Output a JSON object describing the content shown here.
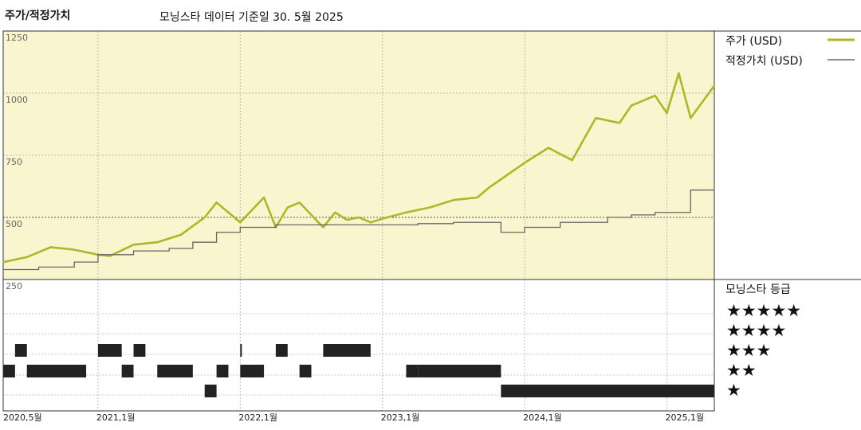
{
  "header": {
    "title": "주가/적정가치",
    "subtitle": "모닝스타 데이터 기준일 30. 5월 2025"
  },
  "legend": {
    "price_label": "주가 (USD)",
    "fair_value_label": "적정가치 (USD)",
    "rating_title": "모닝스타 등급",
    "rating_levels": [
      "★★★★★",
      "★★★★",
      "★★★",
      "★★",
      "★"
    ]
  },
  "colors": {
    "plot_background": "#f8f5cf",
    "price_line": "#aeb728",
    "fair_value_line": "#666666",
    "grid": "#bbbbbb",
    "rating_bar": "#222222"
  },
  "chart_data": {
    "type": "line",
    "y_ticks": [
      250,
      500,
      750,
      1000,
      1250
    ],
    "x_tick_labels": [
      "2020,5월",
      "2021,1월",
      "2022,1월",
      "2023,1월",
      "2024,1월",
      "2025,1월"
    ],
    "ylim": [
      250,
      1250
    ],
    "xlim": [
      "2020-05",
      "2025-05"
    ],
    "series": [
      {
        "name": "주가 (USD)",
        "x": [
          "2020-05",
          "2020-07",
          "2020-09",
          "2020-11",
          "2021-01",
          "2021-02",
          "2021-04",
          "2021-06",
          "2021-08",
          "2021-10",
          "2021-11",
          "2022-01",
          "2022-03",
          "2022-04",
          "2022-05",
          "2022-06",
          "2022-08",
          "2022-09",
          "2022-10",
          "2022-11",
          "2022-12",
          "2023-01",
          "2023-03",
          "2023-05",
          "2023-07",
          "2023-09",
          "2023-10",
          "2024-01",
          "2024-03",
          "2024-05",
          "2024-07",
          "2024-09",
          "2024-10",
          "2024-12",
          "2025-01",
          "2025-02",
          "2025-03",
          "2025-05"
        ],
        "values": [
          320,
          340,
          380,
          370,
          350,
          345,
          390,
          400,
          430,
          500,
          560,
          480,
          580,
          460,
          540,
          560,
          460,
          520,
          490,
          500,
          480,
          495,
          520,
          540,
          570,
          580,
          620,
          720,
          780,
          730,
          900,
          880,
          950,
          990,
          920,
          1080,
          900,
          1030
        ]
      },
      {
        "name": "적정가치 (USD)",
        "x": [
          "2020-05",
          "2020-08",
          "2020-11",
          "2021-01",
          "2021-04",
          "2021-07",
          "2021-09",
          "2021-11",
          "2022-01",
          "2022-04",
          "2022-10",
          "2023-01",
          "2023-04",
          "2023-07",
          "2023-10",
          "2023-11",
          "2024-01",
          "2024-04",
          "2024-08",
          "2024-10",
          "2024-12",
          "2025-03",
          "2025-05"
        ],
        "values": [
          290,
          300,
          320,
          350,
          365,
          375,
          400,
          440,
          460,
          470,
          470,
          470,
          475,
          480,
          480,
          440,
          460,
          480,
          500,
          510,
          520,
          610,
          610
        ]
      }
    ],
    "rating_history": [
      {
        "stars": 3,
        "start": "2020-06",
        "end": "2020-07"
      },
      {
        "stars": 2,
        "start": "2020-05",
        "end": "2020-06"
      },
      {
        "stars": 2,
        "start": "2020-07",
        "end": "2020-12"
      },
      {
        "stars": 3,
        "start": "2021-01",
        "end": "2021-03"
      },
      {
        "stars": 3,
        "start": "2021-04",
        "end": "2021-05"
      },
      {
        "stars": 2,
        "start": "2021-03",
        "end": "2021-04"
      },
      {
        "stars": 2,
        "start": "2021-06",
        "end": "2021-09"
      },
      {
        "stars": 1,
        "start": "2021-10",
        "end": "2021-11"
      },
      {
        "stars": 2,
        "start": "2021-11",
        "end": "2021-12"
      },
      {
        "stars": 3,
        "start": "2022-01",
        "end": "2022-01"
      },
      {
        "stars": 2,
        "start": "2022-01",
        "end": "2022-03"
      },
      {
        "stars": 3,
        "start": "2022-04",
        "end": "2022-05"
      },
      {
        "stars": 2,
        "start": "2022-06",
        "end": "2022-07"
      },
      {
        "stars": 3,
        "start": "2022-08",
        "end": "2022-12"
      },
      {
        "stars": 2,
        "start": "2023-03",
        "end": "2023-04"
      },
      {
        "stars": 2,
        "start": "2023-04",
        "end": "2023-11"
      },
      {
        "stars": 1,
        "start": "2023-11",
        "end": "2025-05"
      }
    ]
  }
}
